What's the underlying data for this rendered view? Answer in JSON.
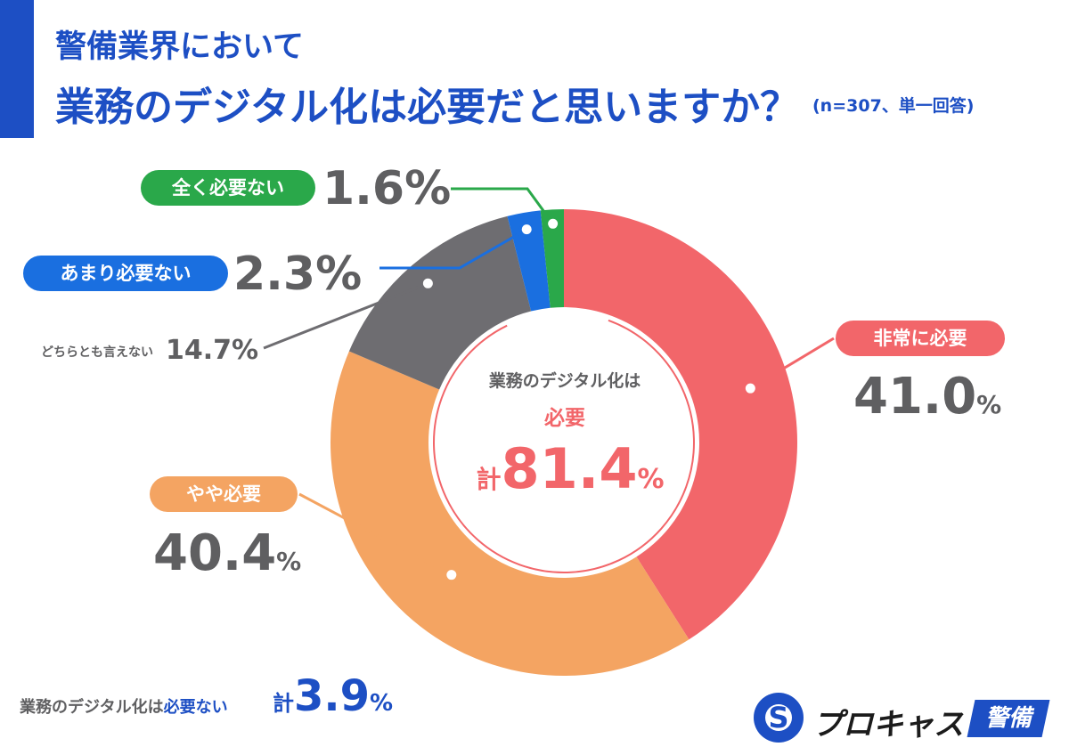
{
  "header": {
    "title_line1": "警備業界において",
    "title_line2": "業務のデジタル化は必要だと思いますか？",
    "note": "(n=307、単一回答)"
  },
  "labels": {
    "not_at_all": "全く必要ない",
    "not_much": "あまり必要ない",
    "neutral": "どちらとも言えない",
    "very": "非常に必要",
    "somewhat": "やや必要"
  },
  "percents": {
    "not_at_all": "1.6",
    "not_much": "2.3",
    "neutral": "14.7",
    "very": "41.0",
    "somewhat": "40.4",
    "unit": "%"
  },
  "center": {
    "line1": "業務のデジタル化は",
    "line2": "必要",
    "prefix": "計",
    "value": "81.4",
    "unit": "%"
  },
  "bottom": {
    "label_prefix": "業務のデジタル化は",
    "label_highlight": "必要ない",
    "prefix": "計",
    "value": "3.9",
    "unit": "%"
  },
  "logo": {
    "mark": "S",
    "text": "プロキャス",
    "badge": "警備"
  },
  "colors": {
    "very": "#f2666a",
    "somewhat": "#f4a462",
    "neutral": "#6e6d71",
    "not_much": "#1a6fe0",
    "not_at_all": "#2aa84a",
    "brand": "#1d4fc4"
  },
  "chart_data": {
    "type": "pie",
    "donut": true,
    "start": "top, clockwise",
    "categories": [
      "非常に必要",
      "やや必要",
      "どちらとも言えない",
      "あまり必要ない",
      "全く必要ない"
    ],
    "values": [
      41.0,
      40.4,
      14.7,
      2.3,
      1.6
    ],
    "unit": "%",
    "n": 307
  }
}
